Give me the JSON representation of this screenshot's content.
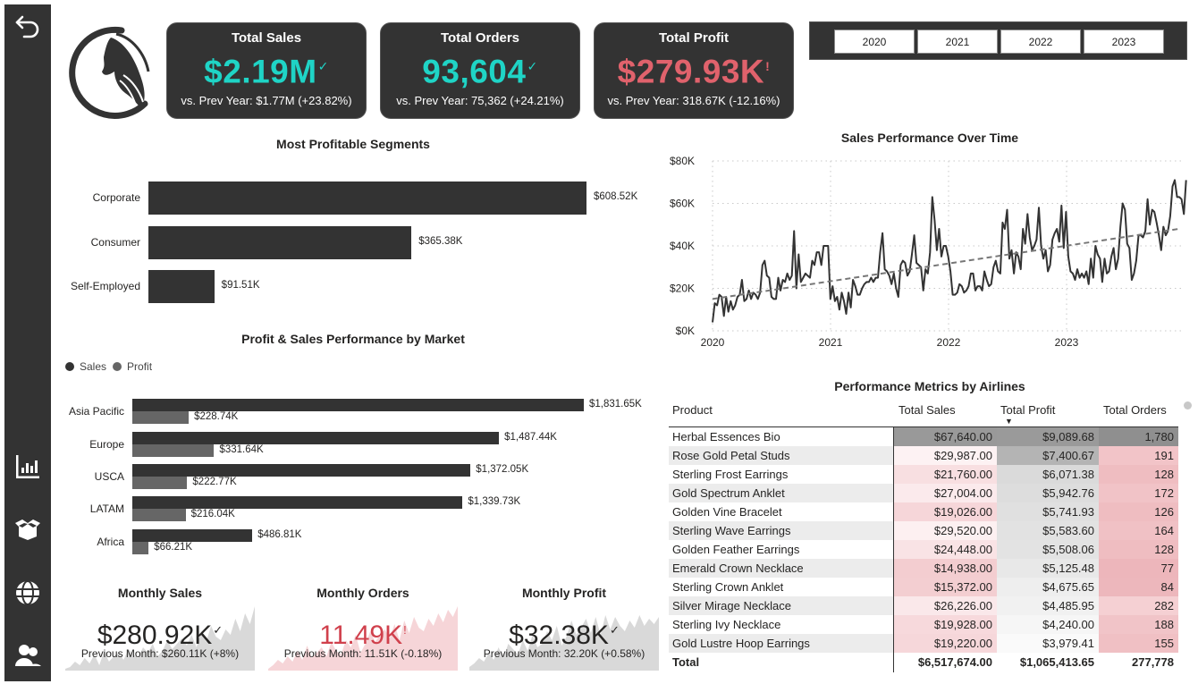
{
  "sidebar": {
    "items": [
      {
        "icon": "back-arrow-icon",
        "label": "Back"
      },
      {
        "icon": "bar-chart-icon",
        "label": "Overview"
      },
      {
        "icon": "open-box-icon",
        "label": "Products"
      },
      {
        "icon": "globe-icon",
        "label": "Markets"
      },
      {
        "icon": "users-icon",
        "label": "Customers"
      }
    ]
  },
  "kpis": [
    {
      "title": "Total Sales",
      "value": "$2.19M",
      "mark": "✓",
      "sub": "vs. Prev Year: $1.77M (+23.82%)",
      "color": "#1fd4c6"
    },
    {
      "title": "Total Orders",
      "value": "93,604",
      "mark": "✓",
      "sub": "vs. Prev Year: 75,362 (+24.21%)",
      "color": "#1fd4c6"
    },
    {
      "title": "Total Profit",
      "value": "$279.93K",
      "mark": "!",
      "sub": "vs. Prev Year: 318.67K (-12.16%)",
      "color": "#e0626c"
    }
  ],
  "year_slicer": {
    "options": [
      "2020",
      "2021",
      "2022",
      "2023"
    ]
  },
  "segments": {
    "title": "Most Profitable Segments",
    "chart_data": {
      "type": "bar",
      "orientation": "horizontal",
      "title": "Most Profitable Segments",
      "categories": [
        "Corporate",
        "Consumer",
        "Self-Employed"
      ],
      "values": [
        608.52,
        365.38,
        91.51
      ],
      "value_unit": "$K",
      "labels": [
        "$608.52K",
        "$365.38K",
        "$91.51K"
      ],
      "color": "#333333"
    }
  },
  "markets": {
    "title": "Profit & Sales Performance by Market",
    "legend": [
      {
        "name": "Sales",
        "color": "#333333"
      },
      {
        "name": "Profit",
        "color": "#666666"
      }
    ],
    "chart_data": {
      "type": "bar",
      "orientation": "horizontal",
      "title": "Profit & Sales Performance by Market",
      "categories": [
        "Asia Pacific",
        "Europe",
        "USCA",
        "LATAM",
        "Africa"
      ],
      "value_unit": "$K",
      "legend_position": "top-left",
      "series": [
        {
          "name": "Sales",
          "color": "#333333",
          "values": [
            1831.65,
            1487.44,
            1372.05,
            1339.73,
            486.81
          ],
          "labels": [
            "$1,831.65K",
            "$1,487.44K",
            "$1,372.05K",
            "$1,339.73K",
            "$486.81K"
          ]
        },
        {
          "name": "Profit",
          "color": "#666666",
          "values": [
            228.74,
            331.64,
            222.77,
            216.04,
            66.21
          ],
          "labels": [
            "$228.74K",
            "$331.64K",
            "$222.77K",
            "$216.04K",
            "$66.21K"
          ]
        }
      ]
    }
  },
  "timeline": {
    "title": "Sales Performance Over Time",
    "chart_data": {
      "type": "line",
      "title": "Sales Performance Over Time",
      "xlabel": "",
      "ylabel": "",
      "x_ticks": [
        "2020",
        "2021",
        "2022",
        "2023"
      ],
      "x_range": [
        2020.0,
        2024.0
      ],
      "y_ticks": [
        "$0K",
        "$20K",
        "$40K",
        "$60K",
        "$80K"
      ],
      "ylim": [
        0,
        80
      ],
      "value_unit": "$K",
      "grid": true,
      "series": [
        {
          "name": "Sales",
          "color": "#333333",
          "x_start": 2020.0,
          "x_step": 0.0192,
          "values": [
            4,
            13,
            12,
            17,
            16,
            7,
            16,
            9,
            14,
            10,
            12,
            16,
            17,
            24,
            14,
            15,
            19,
            15,
            18,
            17,
            15,
            18,
            31,
            33,
            26,
            25,
            16,
            15,
            15,
            25,
            19,
            24,
            23,
            27,
            24,
            26,
            47,
            20,
            36,
            23,
            25,
            27,
            26,
            25,
            33,
            31,
            37,
            37,
            31,
            40,
            40,
            40,
            15,
            21,
            14,
            16,
            10,
            18,
            14,
            8,
            18,
            11,
            24,
            21,
            17,
            17,
            20,
            22,
            23,
            23,
            25,
            23,
            25,
            25,
            37,
            46,
            29,
            28,
            26,
            22,
            27,
            20,
            16,
            31,
            33,
            32,
            26,
            28,
            36,
            45,
            32,
            31,
            30,
            19,
            29,
            27,
            37,
            63,
            52,
            38,
            48,
            35,
            40,
            40,
            35,
            28,
            17,
            17,
            18,
            22,
            21,
            18,
            19,
            21,
            27,
            27,
            19,
            21,
            21,
            19,
            28,
            24,
            21,
            22,
            30,
            33,
            28,
            27,
            51,
            48,
            57,
            34,
            38,
            27,
            37,
            35,
            29,
            48,
            41,
            55,
            44,
            38,
            40,
            43,
            58,
            40,
            34,
            38,
            28,
            31,
            43,
            46,
            48,
            42,
            59,
            39,
            56,
            35,
            28,
            27,
            24,
            29,
            25,
            27,
            25,
            28,
            22,
            34,
            25,
            40,
            36,
            34,
            23,
            34,
            27,
            28,
            35,
            39,
            29,
            34,
            49,
            60,
            57,
            41,
            39,
            24,
            27,
            33,
            45,
            45,
            44,
            47,
            62,
            50,
            57,
            56,
            51,
            45,
            38,
            49,
            45,
            47,
            54,
            68,
            71,
            63,
            63,
            62,
            55,
            71
          ]
        },
        {
          "name": "Trend",
          "color": "#777777",
          "style": "dashed",
          "start": [
            2020.0,
            15
          ],
          "end": [
            2023.95,
            48
          ]
        }
      ]
    }
  },
  "table": {
    "title": "Performance Metrics by Airlines",
    "columns": [
      "Product",
      "Total Sales",
      "Total Profit",
      "Total Orders"
    ],
    "sorted_column": "Total Profit",
    "sort_icon": "sort-descending-icon",
    "rows": [
      {
        "product": "Herbal Essences Bio",
        "sales": "$67,640.00",
        "profit": "$9,089.68",
        "orders": "1,780",
        "sales_bg": "#999999",
        "profit_bg": "#9a9a9a",
        "orders_bg": "#8f8f8f"
      },
      {
        "product": "Rose Gold Petal Studs",
        "sales": "$29,987.00",
        "profit": "$7,400.67",
        "orders": "191",
        "sales_bg": "#fdf2f3",
        "profit_bg": "#b4b4b4",
        "orders_bg": "#f2c4c8"
      },
      {
        "product": "Sterling Frost Earrings",
        "sales": "$21,760.00",
        "profit": "$6,071.38",
        "orders": "128",
        "sales_bg": "#f8dfe1",
        "profit_bg": "#dadada",
        "orders_bg": "#efbdc1"
      },
      {
        "product": "Gold Spectrum Anklet",
        "sales": "$27,004.00",
        "profit": "$5,942.76",
        "orders": "172",
        "sales_bg": "#fbeaec",
        "profit_bg": "#dddddd",
        "orders_bg": "#f1c3c7"
      },
      {
        "product": "Golden Vine Bracelet",
        "sales": "$19,026.00",
        "profit": "$5,741.93",
        "orders": "126",
        "sales_bg": "#f6d6d9",
        "profit_bg": "#e0e0e0",
        "orders_bg": "#efbdc1"
      },
      {
        "product": "Sterling Wave Earrings",
        "sales": "$29,520.00",
        "profit": "$5,583.60",
        "orders": "164",
        "sales_bg": "#fdf0f1",
        "profit_bg": "#e2e2e2",
        "orders_bg": "#f0c1c5"
      },
      {
        "product": "Golden Feather Earrings",
        "sales": "$24,448.00",
        "profit": "$5,508.06",
        "orders": "128",
        "sales_bg": "#f9e3e5",
        "profit_bg": "#e3e3e3",
        "orders_bg": "#efbdc1"
      },
      {
        "product": "Emerald Crown Necklace",
        "sales": "$14,938.00",
        "profit": "$5,125.48",
        "orders": "77",
        "sales_bg": "#f3cdd0",
        "profit_bg": "#e8e8e8",
        "orders_bg": "#edb6bb"
      },
      {
        "product": "Sterling Crown Anklet",
        "sales": "$15,372.00",
        "profit": "$4,675.65",
        "orders": "84",
        "sales_bg": "#f3ced1",
        "profit_bg": "#eeeeee",
        "orders_bg": "#edb7bc"
      },
      {
        "product": "Silver Mirage Necklace",
        "sales": "$26,226.00",
        "profit": "$4,485.95",
        "orders": "282",
        "sales_bg": "#fae8ea",
        "profit_bg": "#f1f1f1",
        "orders_bg": "#f5d0d3"
      },
      {
        "product": "Sterling Ivy Necklace",
        "sales": "$19,928.00",
        "profit": "$4,240.00",
        "orders": "188",
        "sales_bg": "#f7d9dc",
        "profit_bg": "#f6f6f6",
        "orders_bg": "#f1c4c8"
      },
      {
        "product": "Gold Lustre Hoop Earrings",
        "sales": "$19,220.00",
        "profit": "$3,979.41",
        "orders": "155",
        "sales_bg": "#f6d7da",
        "profit_bg": "#fafafa",
        "orders_bg": "#f0c0c4"
      }
    ],
    "total": {
      "label": "Total",
      "sales": "$6,517,674.00",
      "profit": "$1,065,413.65",
      "orders": "277,778"
    }
  },
  "monthly": [
    {
      "title": "Monthly Sales",
      "value": "$280.92K",
      "mark": "✓",
      "sub": "Previous Month: $260.11K (+8%)",
      "value_color": "#252423",
      "spark_color": "#d9d9d9"
    },
    {
      "title": "Monthly Orders",
      "value": "11.49K",
      "mark": "!",
      "sub": "Previous Month: 11.51K (-0.18%)",
      "value_color": "#d0404c",
      "spark_color": "#f6d5d8"
    },
    {
      "title": "Monthly Profit",
      "value": "$32.38K",
      "mark": "✓",
      "sub": "Previous Month: 32.20K (+0.58%)",
      "value_color": "#252423",
      "spark_color": "#d9d9d9"
    }
  ]
}
